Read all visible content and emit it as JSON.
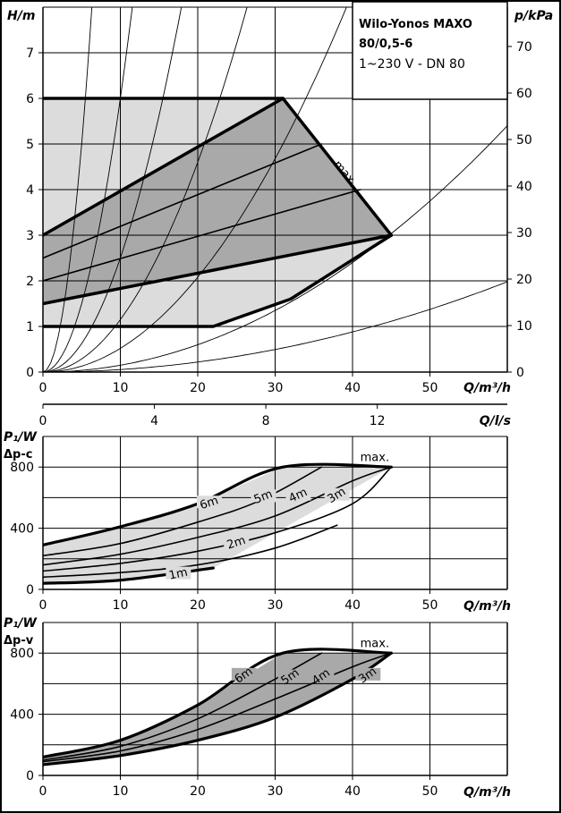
{
  "title_box": {
    "line1": "Wilo-Yonos MAXO",
    "line2": "80/0,5-6",
    "line3": "1~230 V - DN 80"
  },
  "chart_data": [
    {
      "type": "line",
      "id": "hq",
      "ylabel": "H/m",
      "ylabel_right": "p/kPa",
      "xlabel": "Q/m³/h",
      "xlim": [
        0,
        60
      ],
      "ylim": [
        0,
        8
      ],
      "x_ticks": [
        0,
        10,
        20,
        30,
        40,
        50
      ],
      "y_ticks": [
        0,
        1,
        2,
        3,
        4,
        5,
        6,
        7
      ],
      "y_right_ticks": [
        0,
        10,
        20,
        30,
        40,
        50,
        60,
        70
      ],
      "max_label": "max.",
      "light_region": [
        [
          0,
          6
        ],
        [
          31,
          6
        ],
        [
          45,
          3
        ],
        [
          32,
          1.6
        ],
        [
          22,
          1
        ],
        [
          0,
          1
        ]
      ],
      "dark_region": [
        [
          0,
          3
        ],
        [
          31,
          6
        ],
        [
          45,
          3
        ],
        [
          0,
          1.5
        ]
      ],
      "series": [
        {
          "id": "top",
          "role": "bold",
          "points": [
            [
              0,
              6
            ],
            [
              31,
              6
            ],
            [
              45,
              3
            ]
          ]
        },
        {
          "id": "min_band",
          "role": "bold",
          "points": [
            [
              0,
              1
            ],
            [
              22,
              1
            ],
            [
              32,
              1.6
            ],
            [
              45,
              3
            ]
          ]
        },
        {
          "id": "max_pc",
          "role": "bold",
          "points": [
            [
              0,
              3
            ],
            [
              31,
              6
            ]
          ]
        },
        {
          "id": "pc_low",
          "role": "bold",
          "points": [
            [
              0,
              1.5
            ],
            [
              45,
              3
            ]
          ]
        },
        {
          "id": "pc_5",
          "role": "thin",
          "points": [
            [
              0,
              2.5
            ],
            [
              36,
              5
            ]
          ]
        },
        {
          "id": "pc_4",
          "role": "thin",
          "points": [
            [
              0,
              2
            ],
            [
              41,
              4
            ]
          ]
        }
      ],
      "system_curves": [
        {
          "k": 0.2
        },
        {
          "k": 0.06
        },
        {
          "k": 0.025
        },
        {
          "k": 0.0115
        },
        {
          "k": 0.0052
        },
        {
          "k": 0.0015
        },
        {
          "k": 0.00055
        }
      ]
    },
    {
      "type": "axis",
      "id": "ls",
      "xlabel": "Q/l/s",
      "ticks": [
        0,
        4,
        8,
        12
      ]
    },
    {
      "type": "line",
      "id": "p1c",
      "ylabel": "P₁/W",
      "ylabel2": "Δp-c",
      "xlabel": "Q/m³/h",
      "xlim": [
        0,
        60
      ],
      "ylim": [
        0,
        1000
      ],
      "x_ticks": [
        0,
        10,
        20,
        30,
        40,
        50
      ],
      "y_ticks": [
        0,
        400,
        800
      ],
      "max_label": "max.",
      "series": [
        {
          "name": "6m",
          "points": [
            [
              0,
              290
            ],
            [
              10,
              410
            ],
            [
              20,
              560
            ],
            [
              31,
              800
            ],
            [
              45,
              800
            ]
          ]
        },
        {
          "name": "5m",
          "points": [
            [
              0,
              220
            ],
            [
              10,
              300
            ],
            [
              20,
              440
            ],
            [
              28,
              580
            ],
            [
              36,
              800
            ]
          ]
        },
        {
          "name": "4m",
          "points": [
            [
              0,
              160
            ],
            [
              10,
              230
            ],
            [
              20,
              340
            ],
            [
              30,
              480
            ],
            [
              40,
              710
            ],
            [
              45,
              800
            ]
          ]
        },
        {
          "name": "3m",
          "points": [
            [
              0,
              120
            ],
            [
              10,
              170
            ],
            [
              20,
              250
            ],
            [
              30,
              370
            ],
            [
              40,
              560
            ],
            [
              45,
              800
            ]
          ]
        },
        {
          "name": "2m",
          "points": [
            [
              0,
              80
            ],
            [
              10,
              110
            ],
            [
              20,
              160
            ],
            [
              30,
              270
            ],
            [
              38,
              420
            ]
          ]
        },
        {
          "name": "1m",
          "points": [
            [
              0,
              40
            ],
            [
              10,
              60
            ],
            [
              22,
              140
            ]
          ]
        }
      ]
    },
    {
      "type": "line",
      "id": "p1v",
      "ylabel": "P₁/W",
      "ylabel2": "Δp-v",
      "xlabel": "Q/m³/h",
      "xlim": [
        0,
        60
      ],
      "ylim": [
        0,
        1000
      ],
      "x_ticks": [
        0,
        10,
        20,
        30,
        40,
        50
      ],
      "y_ticks": [
        0,
        400,
        800
      ],
      "max_label": "max.",
      "series": [
        {
          "name": "6m",
          "points": [
            [
              0,
              120
            ],
            [
              10,
              230
            ],
            [
              20,
              460
            ],
            [
              31,
              800
            ],
            [
              45,
              800
            ]
          ]
        },
        {
          "name": "5m",
          "points": [
            [
              0,
              100
            ],
            [
              10,
              190
            ],
            [
              20,
              370
            ],
            [
              30,
              630
            ],
            [
              36,
              800
            ]
          ]
        },
        {
          "name": "4m",
          "points": [
            [
              0,
              90
            ],
            [
              10,
              160
            ],
            [
              20,
              300
            ],
            [
              30,
              500
            ],
            [
              40,
              710
            ],
            [
              45,
              800
            ]
          ]
        },
        {
          "name": "3m",
          "points": [
            [
              0,
              70
            ],
            [
              10,
              130
            ],
            [
              20,
              230
            ],
            [
              30,
              380
            ],
            [
              40,
              630
            ],
            [
              45,
              800
            ]
          ]
        }
      ]
    }
  ]
}
